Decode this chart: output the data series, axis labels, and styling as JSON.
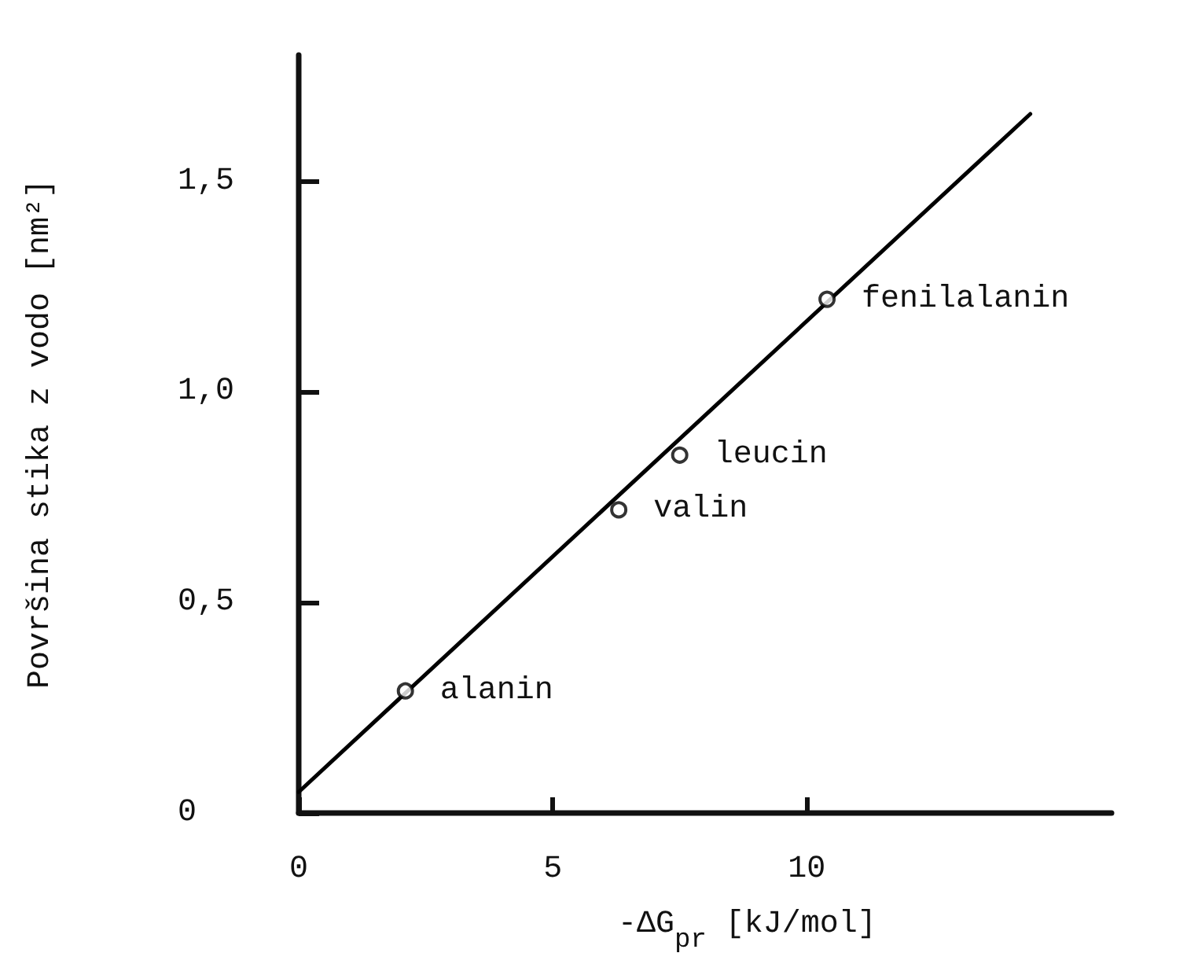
{
  "chart_data": {
    "type": "scatter",
    "xlabel": "-ΔG$_{pr}$ [kJ/mol]",
    "ylabel": "Površina stika z vodo [nm²]",
    "xlim": [
      0,
      16
    ],
    "ylim": [
      0,
      1.8
    ],
    "xticks": [
      0,
      5,
      10
    ],
    "yticks": [
      0,
      {
        "value": 0.5,
        "label": "0,5"
      },
      {
        "value": 1,
        "label": "1,0"
      },
      {
        "value": 1.5,
        "label": "1,5"
      }
    ],
    "grid": false,
    "marker": "circle",
    "series": [
      {
        "x": [
          2.1,
          6.3,
          7.5,
          10.4
        ],
        "values": [
          0.29,
          0.72,
          0.85,
          1.22
        ],
        "color": "#000000"
      },
      {
        "type": "line",
        "x": [
          0,
          14.4
        ],
        "values": [
          0.05,
          1.66
        ],
        "color": "#000000",
        "marker": "none"
      }
    ],
    "annotations": [
      {
        "text": "alanin",
        "x": 2.1,
        "y": 0.29
      },
      {
        "text": "valin",
        "x": 6.3,
        "y": 0.72
      },
      {
        "text": "leucin",
        "x": 7.5,
        "y": 0.85
      },
      {
        "text": "fenilalanin",
        "x": 10.4,
        "y": 1.22
      }
    ]
  }
}
